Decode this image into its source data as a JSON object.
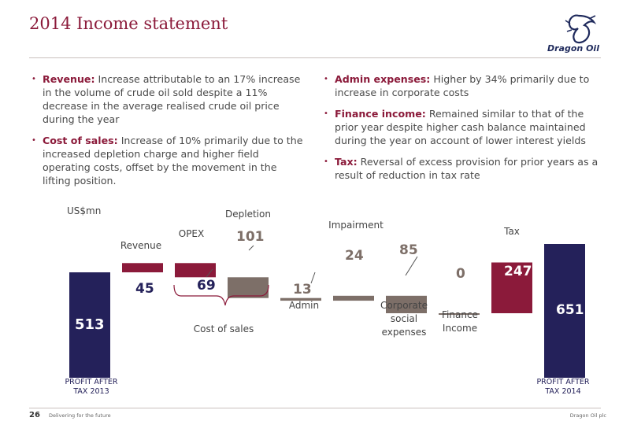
{
  "page": {
    "title": "2014 Income statement",
    "logo_text": "Dragon Oil",
    "logo_icon": "dragon-logo-icon",
    "footer": {
      "page_number": "26",
      "left": "Delivering for the future",
      "right": "Dragon Oil plc"
    }
  },
  "bullets": {
    "left": [
      {
        "heading": "Revenue:",
        "text": " Increase attributable to an 17% increase in the volume of crude oil sold despite a 11% decrease in the average realised crude oil price during the year"
      },
      {
        "heading": "Cost of sales:",
        "text": " Increase of 10% primarily due to the increased depletion charge and higher field operating costs, offset by the movement in the lifting position."
      }
    ],
    "right": [
      {
        "heading": "Admin expenses:",
        "text": " Higher by 34% primarily due to increase in corporate costs"
      },
      {
        "heading": "Finance income:",
        "text": " Remained similar to that of the prior year despite higher cash balance maintained during the year on account of lower interest yields"
      },
      {
        "heading": "Tax:",
        "text": " Reversal of excess provision for prior years as a result of reduction in tax rate"
      }
    ]
  },
  "chart_data": {
    "type": "waterfall",
    "unit_label": "US$mn",
    "bracket_label": "Cost of sales",
    "colors": {
      "total": "#24215a",
      "increase": "#8b1a3a",
      "decrease": "#7d6f68",
      "bracket": "#8b1a3a"
    },
    "steps": [
      {
        "label": "PROFIT AFTER TAX 2013",
        "value": 513,
        "kind": "total"
      },
      {
        "label": "Revenue",
        "value": 45,
        "kind": "increase"
      },
      {
        "label": "OPEX",
        "value": -69,
        "kind": "increase"
      },
      {
        "label": "Depletion",
        "value": -101,
        "kind": "decrease"
      },
      {
        "label": "Admin",
        "value": -13,
        "kind": "decrease"
      },
      {
        "label": "Impairment",
        "value": 24,
        "kind": "decrease"
      },
      {
        "label": "Corporate social expenses",
        "value": -85,
        "kind": "decrease"
      },
      {
        "label": "Finance Income",
        "value": 0,
        "kind": "decrease"
      },
      {
        "label": "Tax",
        "value": 247,
        "kind": "increase"
      },
      {
        "label": "PROFIT AFTER TAX 2014",
        "value": 651,
        "kind": "total"
      }
    ],
    "value_labels": [
      "513",
      "45",
      "69",
      "101",
      "13",
      "24",
      "85",
      "0",
      "247",
      "651"
    ]
  }
}
